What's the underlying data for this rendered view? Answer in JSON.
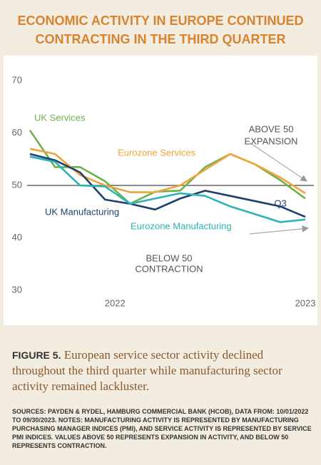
{
  "chart_data": {
    "type": "line",
    "title": "ECONOMIC ACTIVITY IN EUROPE CONTINUED CONTRACTING IN THE THIRD QUARTER",
    "categories": [
      null,
      null,
      null,
      "2022",
      null,
      null,
      null,
      null,
      null,
      null,
      null,
      "2023"
    ],
    "series": [
      {
        "name": "UK Services",
        "color": "#6fb04a",
        "values": [
          60.5,
          53.5,
          53.5,
          50.8,
          46.5,
          48.8,
          49,
          53.5,
          56,
          54,
          51,
          47.5
        ]
      },
      {
        "name": "Eurozone Services",
        "color": "#f0a53a",
        "values": [
          57,
          56,
          52,
          50,
          48.7,
          48.7,
          50,
          53,
          56,
          54,
          51.5,
          48.5
        ]
      },
      {
        "name": "UK Manufacturing",
        "color": "#1f3f6e",
        "values": [
          56,
          54.8,
          52.5,
          47.3,
          46.5,
          45.4,
          47.5,
          49,
          48,
          47,
          46,
          44
        ]
      },
      {
        "name": "Eurozone Manufacturing",
        "color": "#2bb3b8",
        "values": [
          55.5,
          54.5,
          50,
          49.8,
          46.5,
          47.5,
          48.5,
          48,
          46,
          44.5,
          43,
          43.5
        ]
      }
    ],
    "ylim": [
      30,
      70
    ],
    "yticks": [
      30,
      40,
      50,
      60,
      70
    ],
    "reference_line": 50,
    "annotations": [
      "ABOVE 50",
      "EXPANSION",
      "BELOW 50",
      "CONTRACTION",
      "Q3"
    ]
  },
  "figure_label": "FIGURE 5.",
  "caption": "European service sector activity declined throughout the third quarter while manufacturing sector activity remained lackluster.",
  "sources": "SOURCES: PAYDEN & RYDEL, HAMBURG COMMERCIAL BANK (HCOB), DATA FROM: 10/01/2022 TO 09/30/2023. NOTES: MANUFACTURING ACTIVITY IS REPRESENTED BY MANUFACTURING PURCHASING MANAGER INDICES (PMI), AND SERVICE ACTIVITY IS REPRESENTED BY SERVICE PMI INDICES. VALUES ABOVE 50 REPRESENTS EXPANSION IN ACTIVITY, AND BELOW 50 REPRESENTS CONTRACTION."
}
